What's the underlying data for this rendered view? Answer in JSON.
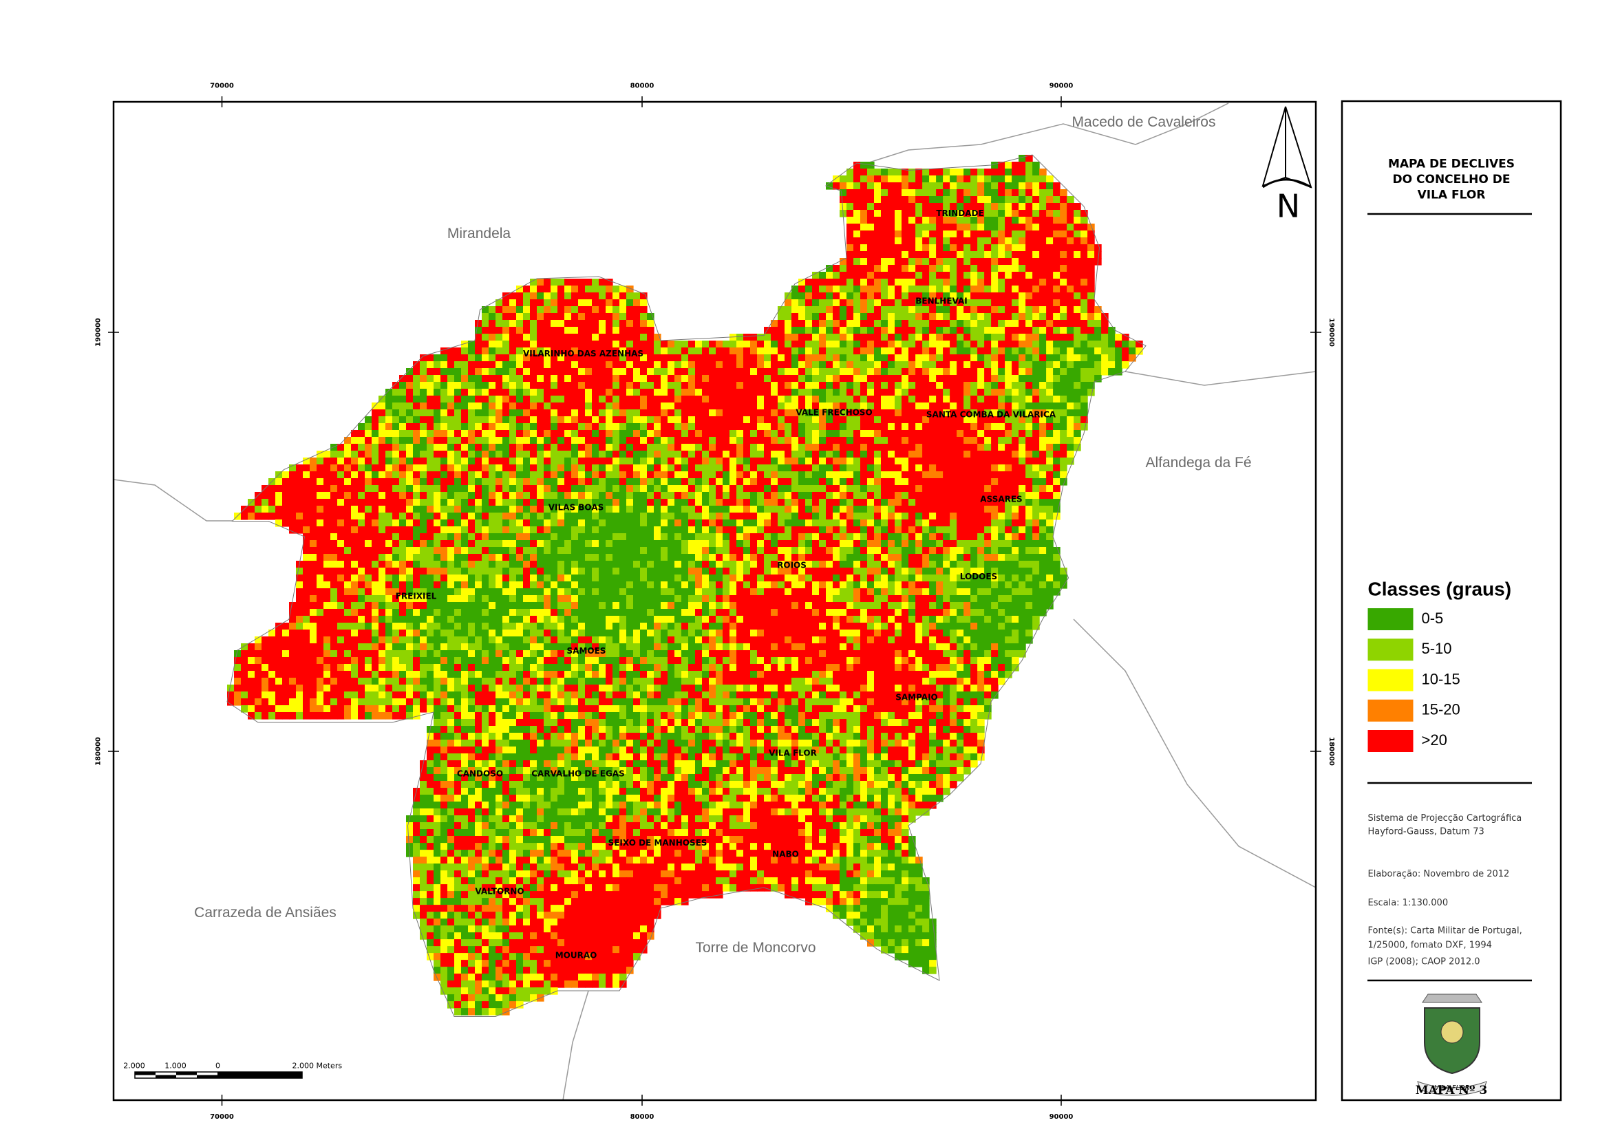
{
  "frame": {
    "x_labels": [
      "70000",
      "80000",
      "90000"
    ],
    "y_labels": [
      "190000",
      "180000"
    ]
  },
  "north": "N",
  "neighbors": [
    "Macedo de Cavaleiros",
    "Mirandela",
    "Alfandega da Fé",
    "Carrazeda de Ansiães",
    "Torre de Moncorvo"
  ],
  "places": [
    "TRINDADE",
    "BENLHEVAI",
    "VILARINHO DAS AZENHAS",
    "VALE FRECHOSO",
    "SANTA COMBA DA VILARICA",
    "ASSARES",
    "VILAS BOAS",
    "ROIOS",
    "LODOES",
    "FREIXIEL",
    "SAMOES",
    "SAMPAIO",
    "VILA FLOR",
    "CANDOSO",
    "CARVALHO DE EGAS",
    "SEIXO DE MANHOSES",
    "NABO",
    "VALTORNO",
    "MOURAO"
  ],
  "panel": {
    "title": [
      "MAPA DE DECLIVES",
      "DO CONCELHO DE",
      "VILA FLOR"
    ],
    "legend": {
      "title": "Classes (graus)",
      "classes": [
        {
          "label": "0-5",
          "color": "#38a800"
        },
        {
          "label": "5-10",
          "color": "#8fd400"
        },
        {
          "label": "10-15",
          "color": "#ffff00"
        },
        {
          "label": "15-20",
          "color": "#ff8000"
        },
        {
          "label": ">20",
          "color": "#ff0000"
        }
      ]
    },
    "notes": [
      "Sistema de Projecção Cartográfica",
      "Hayford-Gauss, Datum 73",
      "Elaboração: Novembro de 2012",
      "Escala:  1:130.000",
      "Fonte(s): Carta Militar de Portugal,",
      "1/25000, fomato DXF, 1994",
      "IGP (2008); CAOP 2012.0"
    ],
    "logo_text": "VILA FLOR",
    "map_number": "MAPA Nº 3"
  },
  "scale_bar": {
    "labels": [
      "2.000",
      "1.000",
      "0",
      "2.000 Meters"
    ]
  }
}
